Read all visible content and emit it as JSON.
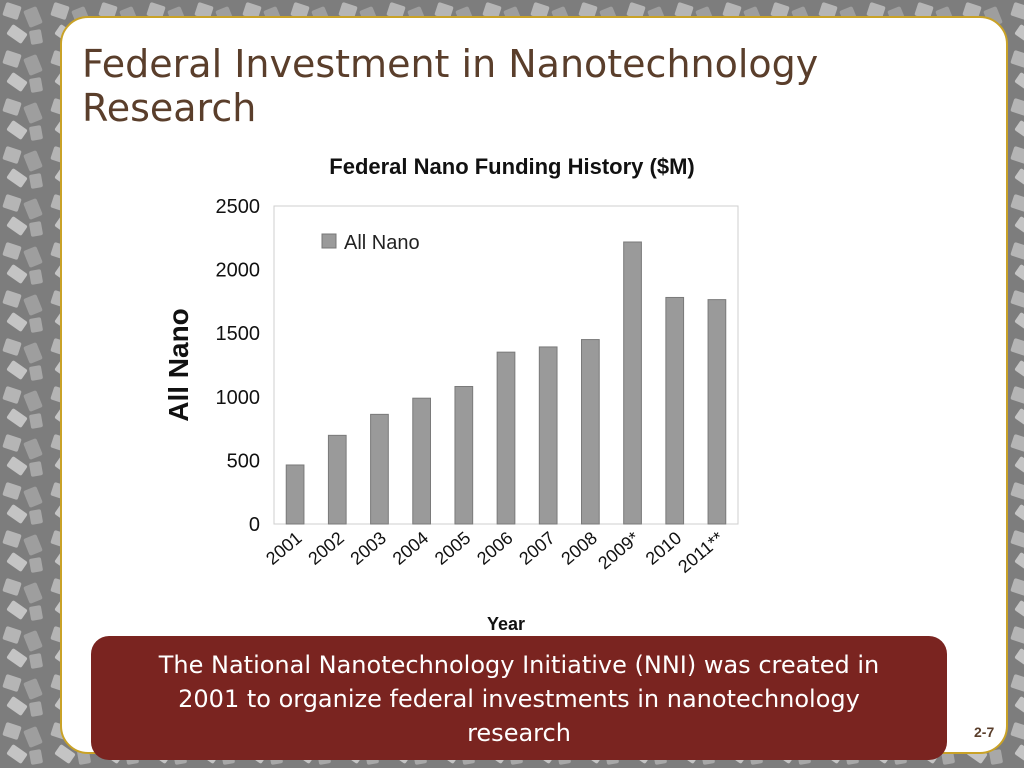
{
  "slide": {
    "title": "Federal Investment in Nanotechnology Research",
    "footer_text": "The National Nanotechnology Initiative (NNI) was created in 2001 to organize federal investments in nanotechnology research",
    "page_number": "2-7",
    "colors": {
      "accent_border": "#c9a227",
      "title_text": "#5a3e2b",
      "footer_bg": "#7a2420"
    }
  },
  "chart_data": {
    "type": "bar",
    "title": "Federal Nano Funding History ($M)",
    "xlabel": "Year",
    "ylabel": "All Nano",
    "ylim": [
      0,
      2500
    ],
    "yticks": [
      0,
      500,
      1000,
      1500,
      2000,
      2500
    ],
    "categories": [
      "2001",
      "2002",
      "2003",
      "2004",
      "2005",
      "2006",
      "2007",
      "2008",
      "2009*",
      "2010",
      "2011**"
    ],
    "series": [
      {
        "name": "All Nano",
        "values": [
          464,
          697,
          862,
          989,
          1081,
          1351,
          1392,
          1450,
          2217,
          1781,
          1764
        ]
      }
    ],
    "legend": "top-left",
    "grid": false,
    "bar_color": "#9a9a9a"
  }
}
